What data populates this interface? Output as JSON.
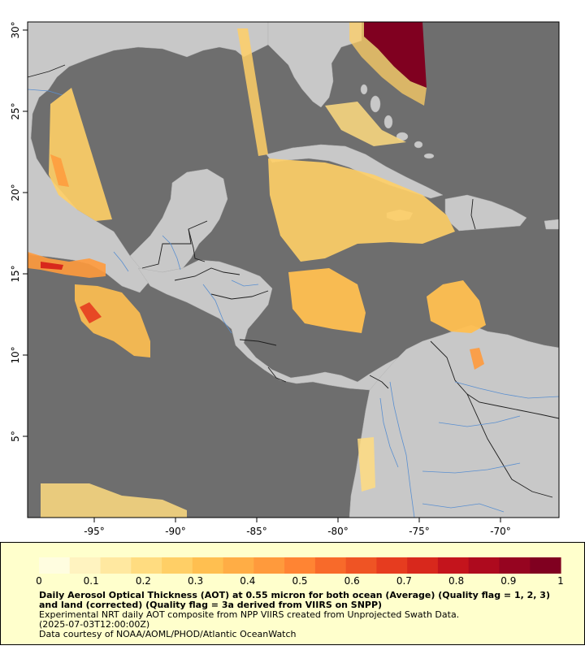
{
  "map": {
    "x_ticks": [
      "-95°",
      "-90°",
      "-85°",
      "-80°",
      "-75°",
      "-70°"
    ],
    "y_ticks": [
      "30°",
      "25°",
      "20°",
      "15°",
      "10°",
      "5°"
    ],
    "colors": {
      "ocean_no_data": "#6e6e6e",
      "land": "#c8c8c8",
      "borders": "#1e1e1e",
      "rivers": "#5a8fd0",
      "aot_low": "#ffe8a0",
      "aot_mid": "#ffb347",
      "aot_high": "#e8501e",
      "aot_max": "#800020"
    },
    "lon_range": [
      -99,
      -66.5
    ],
    "lat_range": [
      0.5,
      30.7
    ]
  },
  "legend": {
    "ticks": [
      "0",
      "0.1",
      "0.2",
      "0.3",
      "0.4",
      "0.5",
      "0.6",
      "0.7",
      "0.8",
      "0.9",
      "1"
    ],
    "title": "Daily Aerosol Optical Thickness (AOT) at 0.55 micron for both ocean (Average) (Quality flag = 1, 2, 3) and land (corrected) (Quality flag = 3a derived from VIIRS on SNPP)",
    "subtitle": "Experimental NRT daily AOT composite from NPP VIIRS created from Unprojected Swath Data.",
    "date": "(2025-07-03T12:00:00Z)",
    "credit": "Data courtesy of NOAA/AOML/PHOD/Atlantic OceanWatch",
    "colors": [
      "#fffde0",
      "#fff3c0",
      "#ffe8a0",
      "#ffdc80",
      "#ffcf66",
      "#ffbf50",
      "#ffad45",
      "#ff9a3c",
      "#ff8433",
      "#f86a2a",
      "#ef5424",
      "#e63c1f",
      "#d8281c",
      "#c4141c",
      "#ae0a1e",
      "#960420",
      "#800020"
    ]
  }
}
